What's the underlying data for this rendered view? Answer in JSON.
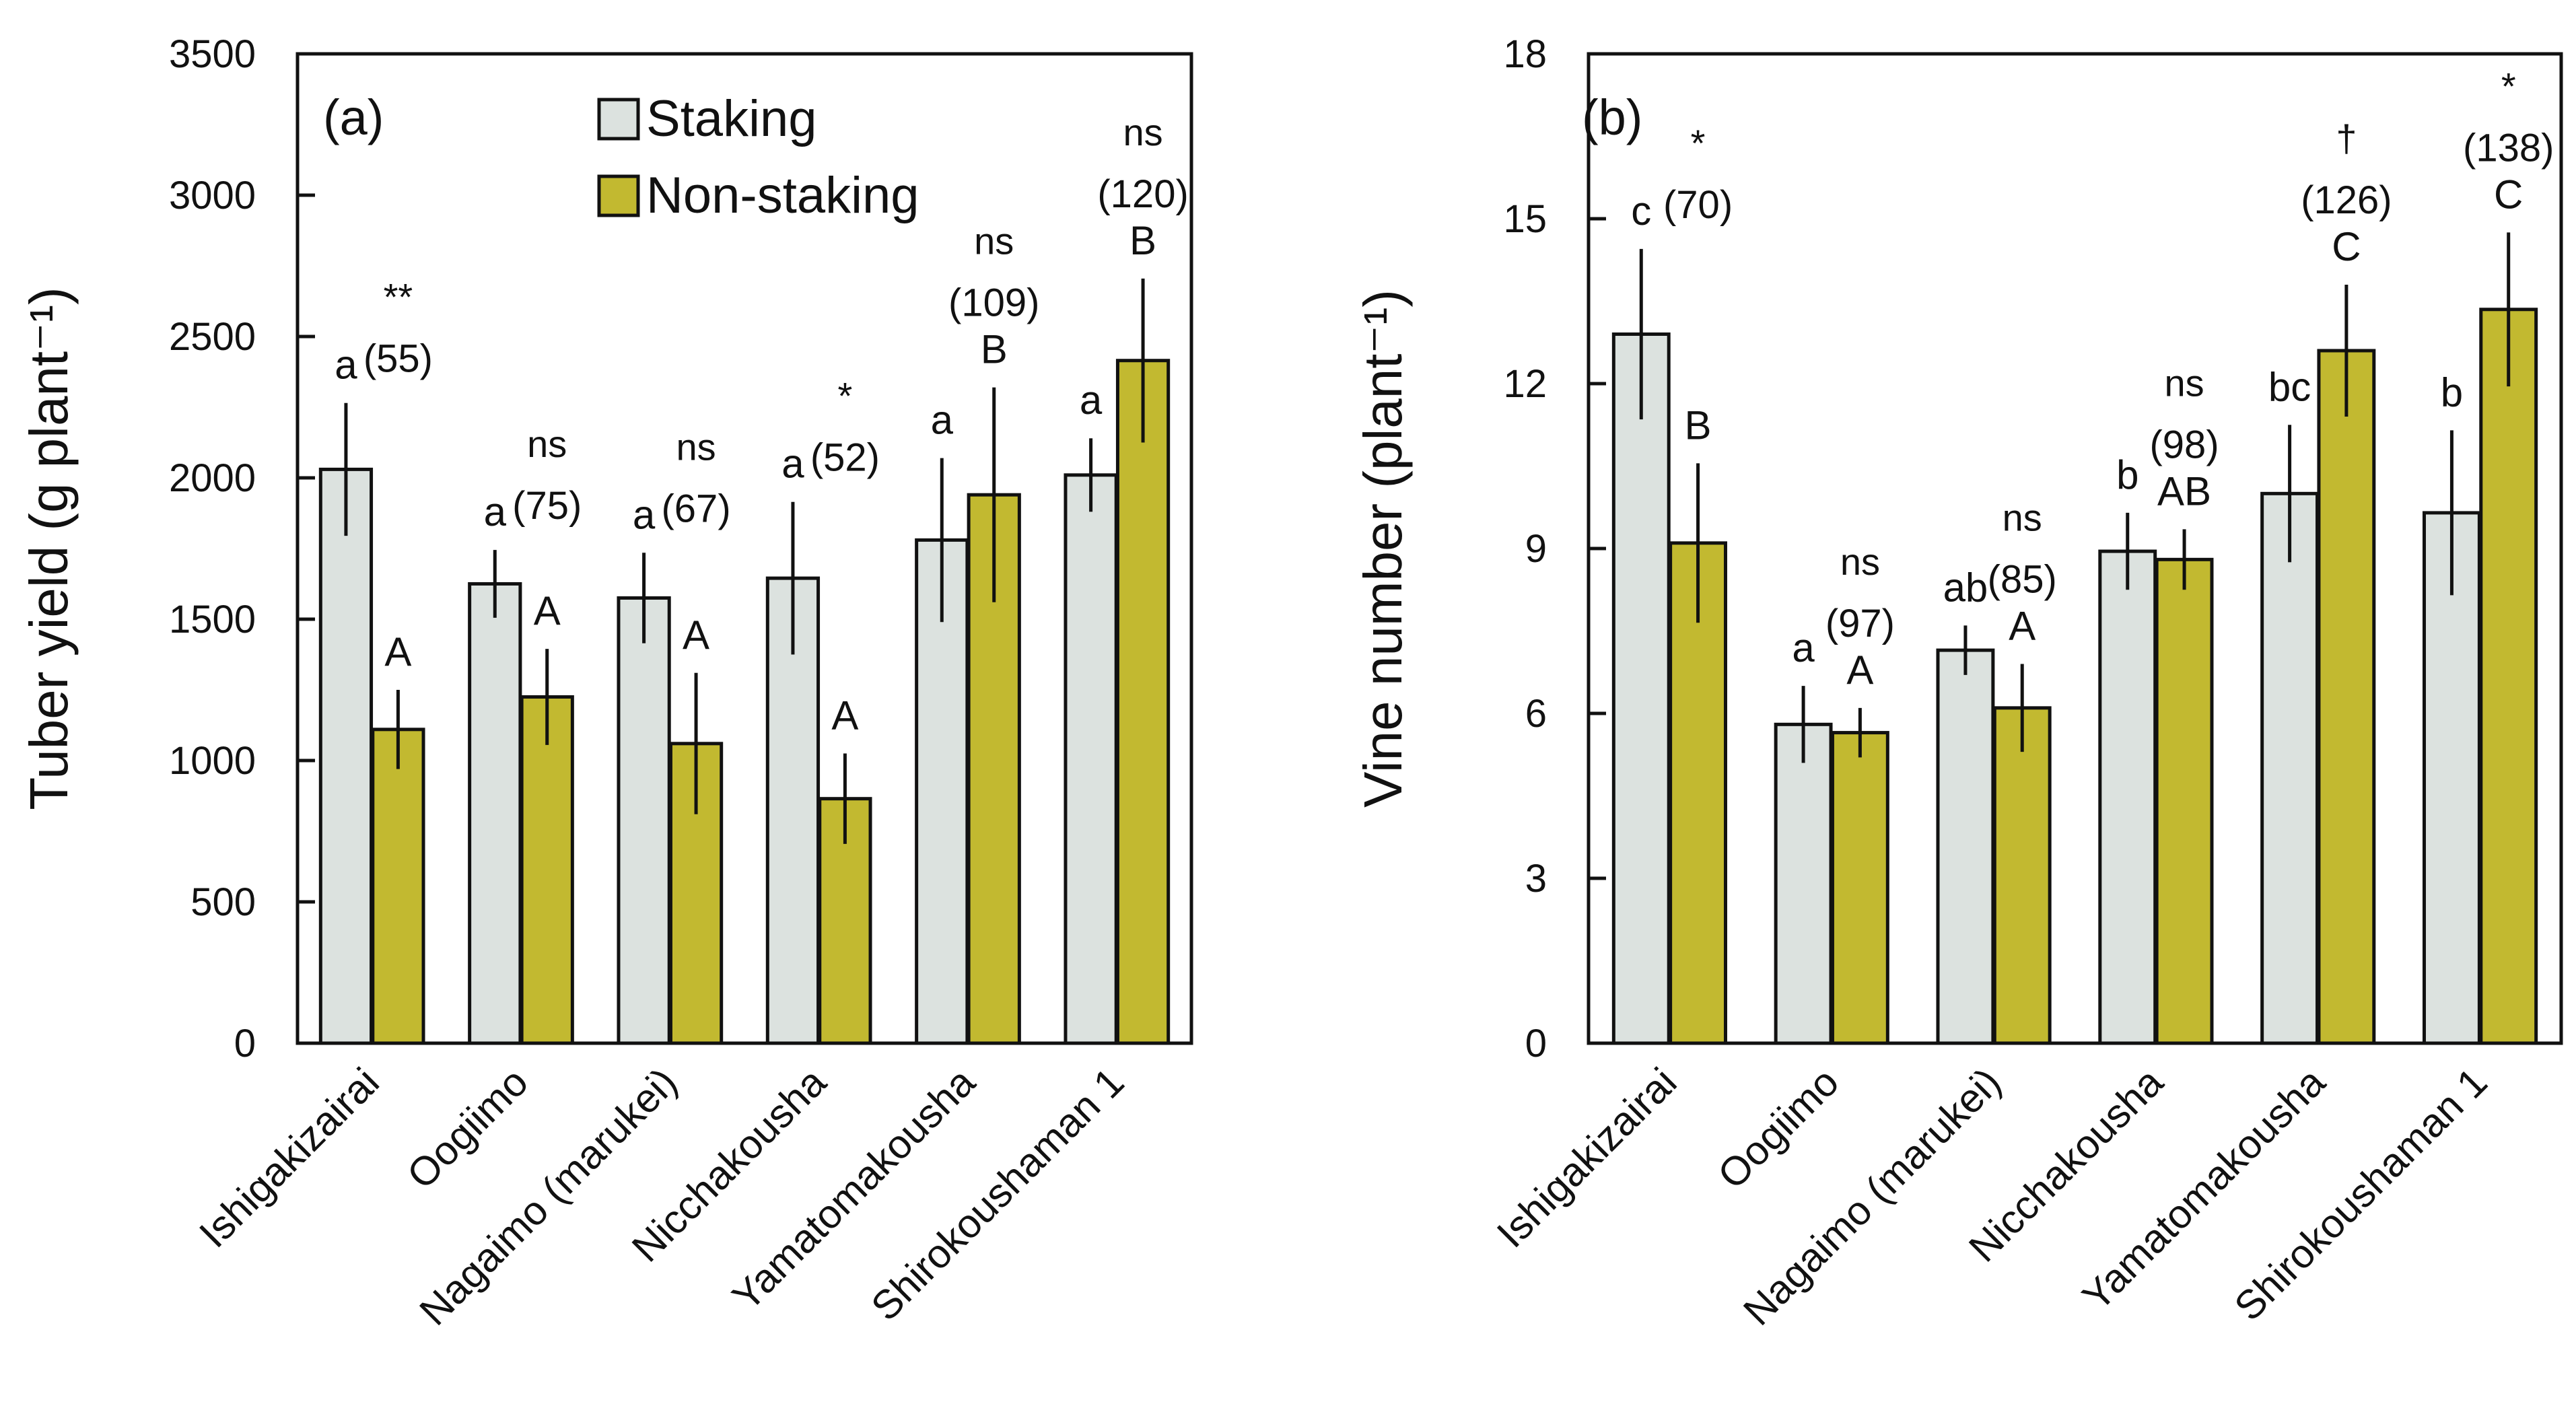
{
  "colors": {
    "staking": "#dce2df",
    "non_staking": "#c2b930",
    "ink": "#111111"
  },
  "chart_data": [
    {
      "type": "bar",
      "panel_label": "(a)",
      "ylabel": "Tuber yield (g plant⁻¹)",
      "ylim": [
        0,
        3500
      ],
      "yticks": [
        "0",
        "500",
        "1000",
        "1500",
        "2000",
        "2500",
        "3000",
        "3500"
      ],
      "categories": [
        "Ishigakizairai",
        "Oogiimo",
        "Nagaimo (marukei)",
        "Nicchakousha",
        "Yamatomakousha",
        "Shirokoushaman 1"
      ],
      "legend": {
        "position": "top-left",
        "entries": [
          "Staking",
          "Non-staking"
        ]
      },
      "series": [
        {
          "name": "Staking",
          "values": [
            2030,
            1625,
            1575,
            1645,
            1780,
            2010
          ],
          "errors": [
            235,
            120,
            160,
            270,
            290,
            130
          ],
          "letters": [
            "a",
            "a",
            "a",
            "a",
            "a",
            "a"
          ]
        },
        {
          "name": "Non-staking",
          "values": [
            1110,
            1225,
            1060,
            865,
            1940,
            2415
          ],
          "errors": [
            140,
            170,
            250,
            160,
            380,
            290
          ],
          "letters": [
            "A",
            "A",
            "A",
            "A",
            "B",
            "B"
          ]
        }
      ],
      "significance": [
        "**",
        "ns",
        "ns",
        "*",
        "ns",
        "ns"
      ],
      "percent": [
        "(55)",
        "(75)",
        "(67)",
        "(52)",
        "(109)",
        "(120)"
      ]
    },
    {
      "type": "bar",
      "panel_label": "(b)",
      "ylabel": "Vine number (plant⁻¹)",
      "ylim": [
        0,
        18
      ],
      "yticks": [
        "0",
        "3",
        "6",
        "9",
        "12",
        "15",
        "18"
      ],
      "categories": [
        "Ishigakizairai",
        "Oogiimo",
        "Nagaimo (marukei)",
        "Nicchakousha",
        "Yamatomakousha",
        "Shirokoushaman 1"
      ],
      "series": [
        {
          "name": "Staking",
          "values": [
            12.9,
            5.8,
            7.15,
            8.95,
            10.0,
            9.65
          ],
          "errors": [
            1.55,
            0.7,
            0.45,
            0.7,
            1.25,
            1.5
          ],
          "letters": [
            "c",
            "a",
            "ab",
            "b",
            "bc",
            "b"
          ]
        },
        {
          "name": "Non-staking",
          "values": [
            9.1,
            5.65,
            6.1,
            8.8,
            12.6,
            13.35
          ],
          "errors": [
            1.45,
            0.45,
            0.8,
            0.55,
            1.2,
            1.4
          ],
          "letters": [
            "B",
            "A",
            "A",
            "AB",
            "C",
            "C"
          ]
        }
      ],
      "significance": [
        "*",
        "ns",
        "ns",
        "ns",
        "†",
        "*"
      ],
      "percent": [
        "(70)",
        "(97)",
        "(85)",
        "(98)",
        "(126)",
        "(138)"
      ]
    }
  ]
}
